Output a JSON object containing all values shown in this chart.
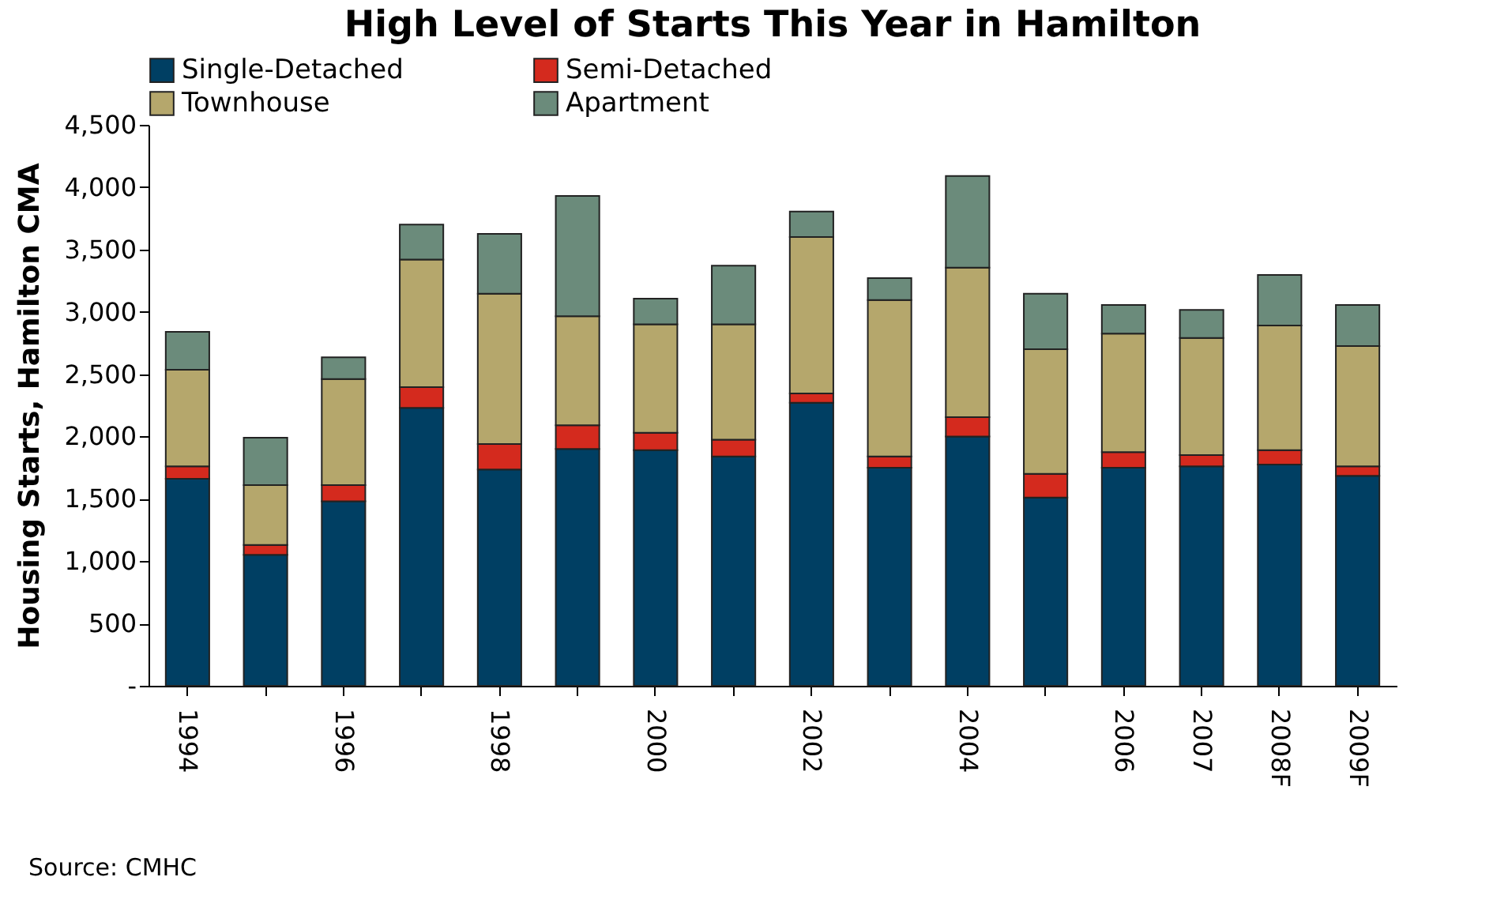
{
  "chart_data": {
    "type": "bar",
    "title": "High Level of Starts This Year in Hamilton",
    "ylabel": "Housing Starts, Hamilton CMA",
    "categories": [
      "1994",
      null,
      "1996",
      null,
      "1998",
      null,
      "2000",
      null,
      "2002",
      null,
      "2004",
      null,
      "2006",
      "2007",
      "2008F",
      "2009F"
    ],
    "stacked": true,
    "series": [
      {
        "name": "Single-Detached",
        "color": "#003f63",
        "values": [
          1660,
          1050,
          1480,
          2230,
          1735,
          1900,
          1890,
          1840,
          2270,
          1750,
          2000,
          1510,
          1750,
          1760,
          1775,
          1685
        ]
      },
      {
        "name": "Semi-Detached",
        "color": "#d42a1e",
        "values": [
          100,
          80,
          130,
          165,
          205,
          190,
          140,
          135,
          75,
          90,
          155,
          190,
          125,
          90,
          115,
          75
        ]
      },
      {
        "name": "Townhouse",
        "color": "#b5a76c",
        "values": [
          775,
          480,
          850,
          1025,
          1205,
          875,
          870,
          925,
          1255,
          1255,
          1200,
          1000,
          950,
          940,
          1000,
          965
        ]
      },
      {
        "name": "Apartment",
        "color": "#6b8b7b",
        "values": [
          305,
          380,
          175,
          280,
          480,
          965,
          205,
          470,
          205,
          175,
          735,
          445,
          230,
          225,
          405,
          330
        ]
      }
    ],
    "ylim": [
      0,
      4500
    ],
    "yticks": [
      {
        "value": 0,
        "label": "-"
      },
      500,
      {
        "value": 1000,
        "label": "1,000"
      },
      {
        "value": 1500,
        "label": "1,500"
      },
      {
        "value": 2000,
        "label": "2,000"
      },
      {
        "value": 2500,
        "label": "2,500"
      },
      {
        "value": 3000,
        "label": "3,000"
      },
      {
        "value": 3500,
        "label": "3,500"
      },
      {
        "value": 4000,
        "label": "4,000"
      },
      {
        "value": 4500,
        "label": "4,500"
      }
    ],
    "grid": false,
    "legend": "top",
    "annotations": [
      "Source: CMHC"
    ]
  }
}
